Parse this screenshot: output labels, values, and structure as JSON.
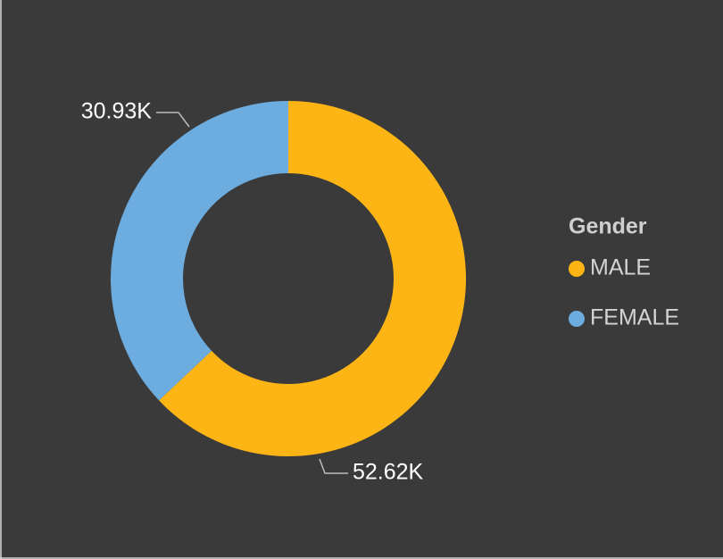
{
  "chart_data": {
    "type": "donut",
    "legend_title": "Gender",
    "categories": [
      "MALE",
      "FEMALE"
    ],
    "values": [
      52620,
      30930
    ],
    "value_labels": [
      "52.62K",
      "30.93K"
    ],
    "colors": [
      "#fdb515",
      "#6cacdf"
    ],
    "legend": "right"
  }
}
